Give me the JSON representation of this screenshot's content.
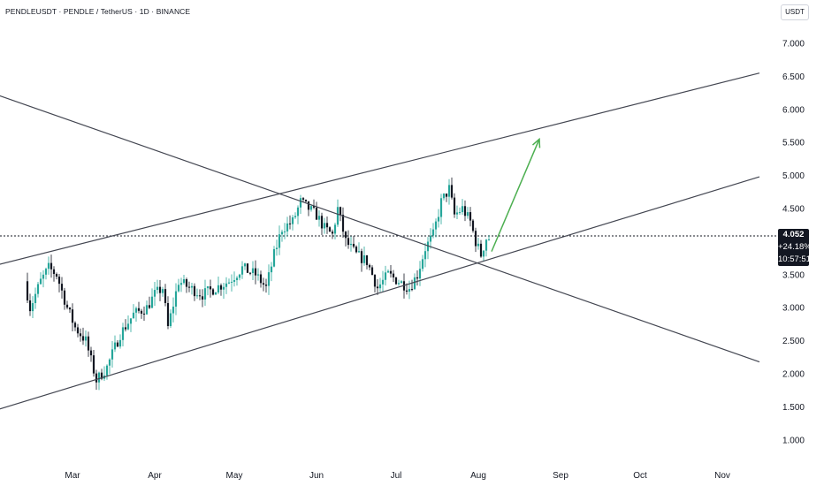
{
  "header": {
    "title": "PENDLEUSDT · PENDLE / TetherUS · 1D · BINANCE",
    "currency": "USDT"
  },
  "price_tag": {
    "price": "4.052",
    "change": "+24.18%",
    "countdown": "10:57:51"
  },
  "colors": {
    "up": "#26a69a",
    "down": "#131722",
    "trendline": "#434651",
    "arrow": "#4caf50",
    "label_bg": "#131722"
  },
  "chart_data": {
    "type": "candlestick",
    "yticks": [
      "7.000",
      "6.500",
      "6.000",
      "5.500",
      "5.000",
      "4.500",
      "3.500",
      "3.000",
      "2.500",
      "2.000",
      "1.500",
      "1.000"
    ],
    "xticks": [
      "Mar",
      "Apr",
      "May",
      "Jun",
      "Jul",
      "Aug",
      "Sep",
      "Oct",
      "Nov"
    ],
    "ylim": [
      1.0,
      7.0
    ],
    "current_price": 4.052,
    "price_path": [
      {
        "x": "Feb 13",
        "y": 3.4
      },
      {
        "x": "Feb 15",
        "y": 3.0
      },
      {
        "x": "Feb 19",
        "y": 3.4
      },
      {
        "x": "Feb 22",
        "y": 3.6
      },
      {
        "x": "Feb 25",
        "y": 3.5
      },
      {
        "x": "Feb 29",
        "y": 3.0
      },
      {
        "x": "Mar 3",
        "y": 2.7
      },
      {
        "x": "Mar 7",
        "y": 2.5
      },
      {
        "x": "Mar 11",
        "y": 1.9
      },
      {
        "x": "Mar 15",
        "y": 2.1
      },
      {
        "x": "Mar 20",
        "y": 2.6
      },
      {
        "x": "Mar 25",
        "y": 2.9
      },
      {
        "x": "Mar 30",
        "y": 3.0
      },
      {
        "x": "Apr 2",
        "y": 3.2
      },
      {
        "x": "Apr 5",
        "y": 3.3
      },
      {
        "x": "Apr 7",
        "y": 2.7
      },
      {
        "x": "Apr 11",
        "y": 3.4
      },
      {
        "x": "Apr 15",
        "y": 3.3
      },
      {
        "x": "Apr 20",
        "y": 3.2
      },
      {
        "x": "Apr 25",
        "y": 3.3
      },
      {
        "x": "Apr 30",
        "y": 3.4
      },
      {
        "x": "May 5",
        "y": 3.6
      },
      {
        "x": "May 10",
        "y": 3.5
      },
      {
        "x": "May 14",
        "y": 3.3
      },
      {
        "x": "May 17",
        "y": 3.8
      },
      {
        "x": "May 20",
        "y": 4.2
      },
      {
        "x": "May 24",
        "y": 4.3
      },
      {
        "x": "May 27",
        "y": 4.6
      },
      {
        "x": "May 30",
        "y": 4.5
      },
      {
        "x": "Jun 2",
        "y": 4.4
      },
      {
        "x": "Jun 5",
        "y": 4.2
      },
      {
        "x": "Jun 8",
        "y": 4.1
      },
      {
        "x": "Jun 10",
        "y": 4.5
      },
      {
        "x": "Jun 13",
        "y": 4.0
      },
      {
        "x": "Jun 17",
        "y": 3.8
      },
      {
        "x": "Jun 21",
        "y": 3.7
      },
      {
        "x": "Jun 25",
        "y": 3.3
      },
      {
        "x": "Jun 29",
        "y": 3.5
      },
      {
        "x": "Jul 3",
        "y": 3.4
      },
      {
        "x": "Jul 7",
        "y": 3.3
      },
      {
        "x": "Jul 10",
        "y": 3.5
      },
      {
        "x": "Jul 13",
        "y": 3.9
      },
      {
        "x": "Jul 16",
        "y": 4.1
      },
      {
        "x": "Jul 19",
        "y": 4.6
      },
      {
        "x": "Jul 22",
        "y": 4.8
      },
      {
        "x": "Jul 24",
        "y": 4.4
      },
      {
        "x": "Jul 27",
        "y": 4.5
      },
      {
        "x": "Jul 30",
        "y": 4.3
      },
      {
        "x": "Aug 1",
        "y": 4.0
      },
      {
        "x": "Aug 3",
        "y": 3.8
      },
      {
        "x": "Aug 5",
        "y": 4.05
      }
    ],
    "trendlines": [
      {
        "x1": "Jan 24",
        "y1": 3.56,
        "x2": "Nov 15",
        "y2": 6.55
      },
      {
        "x1": "Jan 24",
        "y1": 1.35,
        "x2": "Nov 15",
        "y2": 4.98
      },
      {
        "x1": "Jan 24",
        "y1": 6.34,
        "x2": "Nov 15",
        "y2": 2.18
      }
    ],
    "arrow": {
      "x1": "Aug 6",
      "y1": 3.85,
      "x2": "Aug 24",
      "y2": 5.55
    }
  }
}
